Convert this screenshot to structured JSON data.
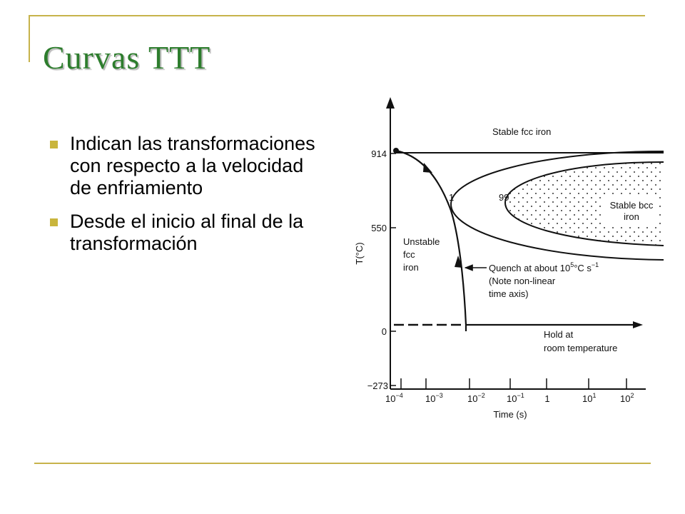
{
  "slide": {
    "title": "Curvas TTT",
    "bullets": [
      "Indican las transformaciones con respecto a la velocidad de enfriamiento",
      "Desde el inicio al final de la transformación"
    ],
    "accent_color": "#c9b53d",
    "title_color": "#2d7d2d"
  },
  "figure": {
    "y_axis_label": "T(°C)",
    "x_axis_label": "Time (s)",
    "y_ticks": [
      "914",
      "550",
      "0",
      "−273"
    ],
    "x_ticks": [
      {
        "base": "10",
        "exp": "−4"
      },
      {
        "base": "10",
        "exp": "−3"
      },
      {
        "base": "10",
        "exp": "−2"
      },
      {
        "base": "10",
        "exp": "−1"
      },
      {
        "base": "1",
        "exp": ""
      },
      {
        "base": "10",
        "exp": "1"
      },
      {
        "base": "10",
        "exp": "2"
      }
    ],
    "stable_fcc": "Stable fcc iron",
    "curve_1": "1",
    "curve_99": "99",
    "stable_bcc": [
      "Stable bcc",
      "iron"
    ],
    "unstable_fcc": [
      "Unstable",
      "fcc",
      "iron"
    ],
    "quench_note": {
      "line1_prefix": "Quench at about 10",
      "line1_exp": "5",
      "line1_suffix": "°C s",
      "line1_exp2": "−1",
      "line2": "(Note non-linear",
      "line3": "time axis)"
    },
    "hold_note": [
      "Hold at",
      "room temperature"
    ]
  }
}
